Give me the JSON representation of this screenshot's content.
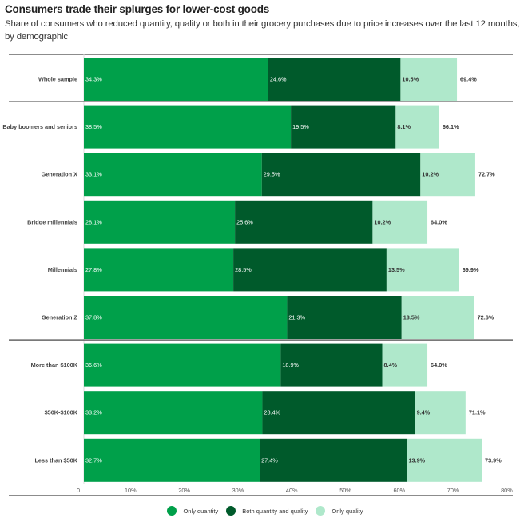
{
  "chart_data": {
    "type": "bar",
    "orientation": "horizontal",
    "stacked": true,
    "title": "Consumers trade their splurges for lower-cost goods",
    "subtitle": "Share of consumers who reduced quantity, quality or both in their grocery purchases due to price increases over the last 12 months, by demographic",
    "xlabel": "",
    "ylabel": "",
    "xlim": [
      0,
      80
    ],
    "x_ticks": [
      {
        "value": 0,
        "label": "0"
      },
      {
        "value": 10,
        "label": "10%"
      },
      {
        "value": 20,
        "label": "20%"
      },
      {
        "value": 30,
        "label": "30%"
      },
      {
        "value": 40,
        "label": "40%"
      },
      {
        "value": 50,
        "label": "50%"
      },
      {
        "value": 60,
        "label": "60%"
      },
      {
        "value": 70,
        "label": "70%"
      },
      {
        "value": 80,
        "label": "80%"
      }
    ],
    "grid": false,
    "legend_position": "bottom",
    "categories": [
      "Whole sample",
      "Baby boomers and seniors",
      "Generation X",
      "Bridge millennials",
      "Millennials",
      "Generation Z",
      "More than $100K",
      "$50K-$100K",
      "Less than $50K"
    ],
    "group_breaks_after": [
      0,
      5
    ],
    "series": [
      {
        "name": "Only quantity",
        "color": "#00a04a",
        "label_color": "#ffffff",
        "values": [
          34.3,
          38.5,
          33.1,
          28.1,
          27.8,
          37.8,
          36.6,
          33.2,
          32.7
        ],
        "labels": [
          "34.3%",
          "38.5%",
          "33.1%",
          "28.1%",
          "27.8%",
          "37.8%",
          "36.6%",
          "33.2%",
          "32.7%"
        ]
      },
      {
        "name": "Both quantity and quality",
        "color": "#005a2b",
        "label_color": "#ffffff",
        "values": [
          24.6,
          19.5,
          29.5,
          25.6,
          28.5,
          21.3,
          18.9,
          28.4,
          27.4
        ],
        "labels": [
          "24.6%",
          "19.5%",
          "29.5%",
          "25.6%",
          "28.5%",
          "21.3%",
          "18.9%",
          "28.4%",
          "27.4%"
        ]
      },
      {
        "name": "Only quality",
        "color": "#afe8cb",
        "label_color": "#333333",
        "values": [
          10.5,
          8.1,
          10.2,
          10.2,
          13.5,
          13.5,
          8.4,
          9.4,
          13.9
        ],
        "labels": [
          "10.5%",
          "8.1%",
          "10.2%",
          "10.2%",
          "13.5%",
          "13.5%",
          "8.4%",
          "9.4%",
          "13.9%"
        ]
      }
    ],
    "totals": [
      69.4,
      66.1,
      72.7,
      64.0,
      69.9,
      72.6,
      64.0,
      71.1,
      73.9
    ],
    "total_labels": [
      "69.4%",
      "66.1%",
      "72.7%",
      "64.0%",
      "69.9%",
      "72.6%",
      "64.0%",
      "71.1%",
      "73.9%"
    ]
  }
}
